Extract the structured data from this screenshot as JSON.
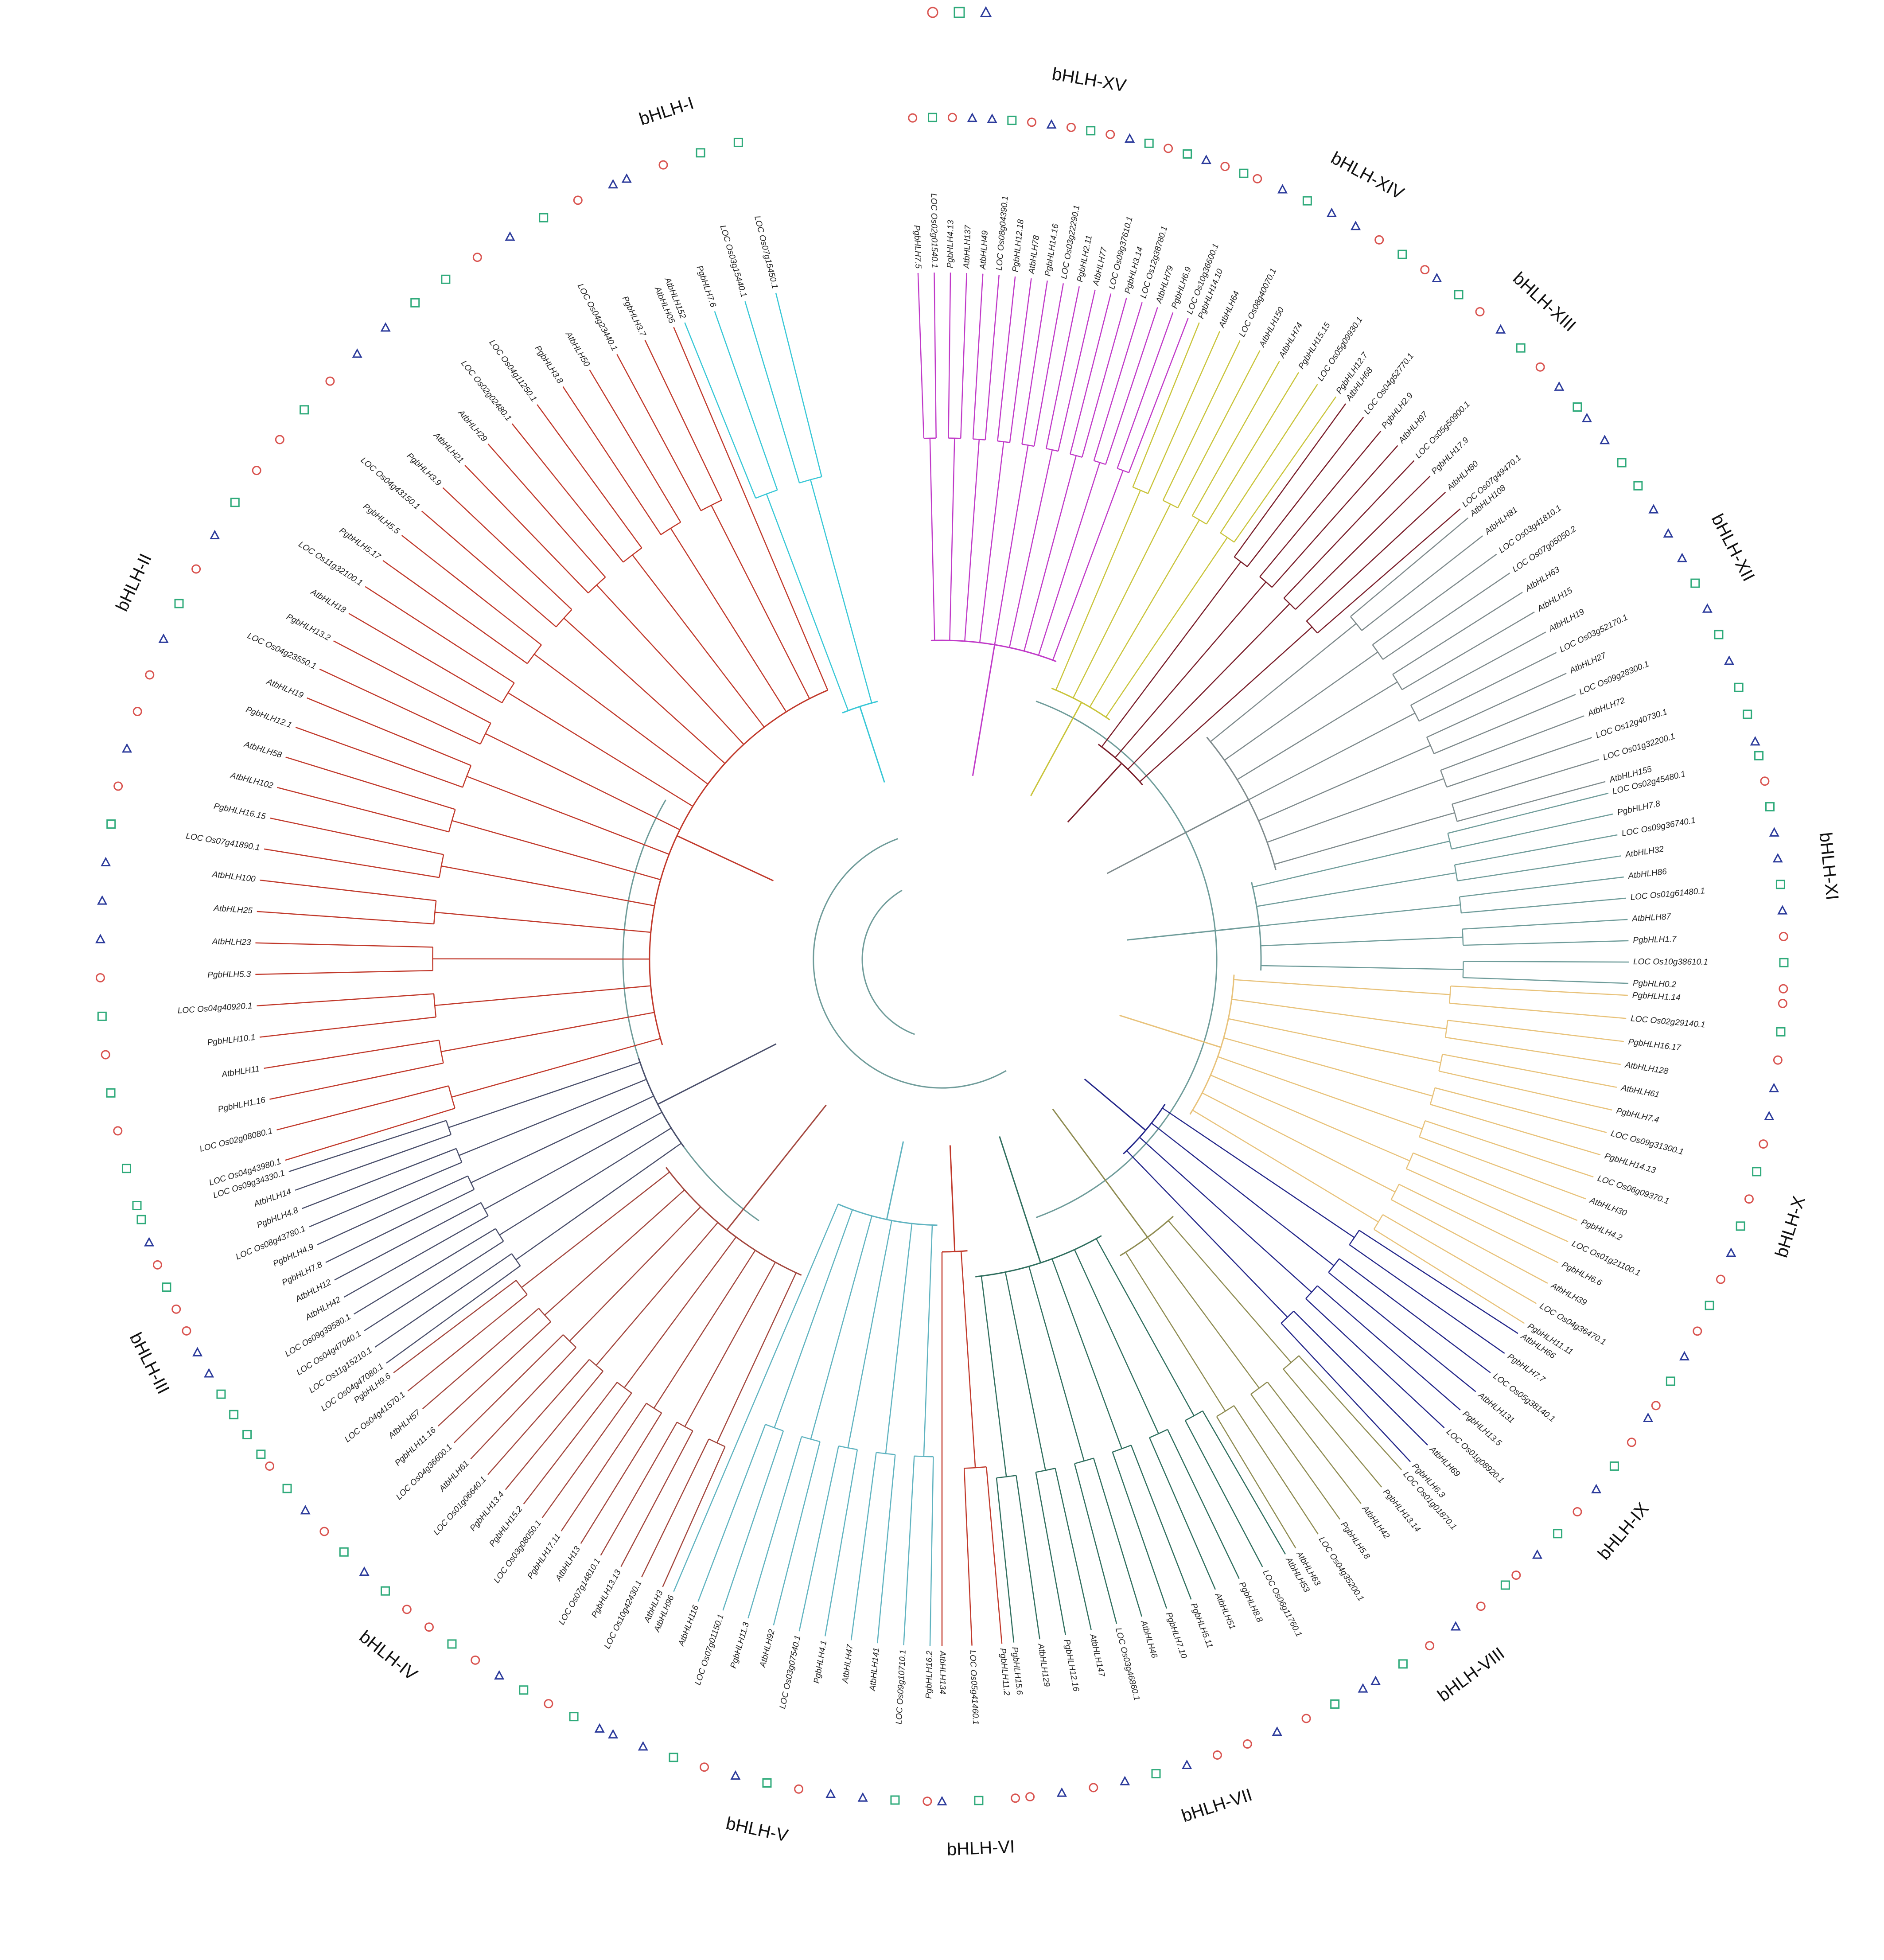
{
  "legend": {
    "items": [
      {
        "shape": "circle",
        "color": "#d9534f"
      },
      {
        "shape": "square",
        "color": "#2eaa7a"
      },
      {
        "shape": "triangle",
        "color": "#2b3a9b"
      }
    ]
  },
  "markers": {
    "circle": "#d9534f",
    "square": "#2eaa7a",
    "triangle": "#2b3a9b"
  },
  "backbone_color": "#6f9c9a",
  "groups": [
    {
      "label": "bHLH-I",
      "color": "#37c7d6",
      "startDeg": 338,
      "endDeg": 346,
      "markerTypes": [
        "triangle",
        "circle",
        "square",
        "square"
      ],
      "leaves": [
        "AtbHLH152",
        "PgbHLH7.6",
        "LOC Os03g15440.1",
        "LOC Os07g15450.1"
      ]
    },
    {
      "label": "bHLH-II",
      "color": "#c1392b",
      "startDeg": 253,
      "endDeg": 337,
      "markerTypes": [
        "square",
        "square",
        "circle",
        "square",
        "circle",
        "square",
        "circle",
        "triangle",
        "triangle",
        "triangle",
        "square",
        "circle",
        "triangle",
        "circle",
        "circle",
        "triangle",
        "square",
        "circle",
        "triangle",
        "square",
        "circle",
        "circle",
        "square",
        "circle",
        "triangle",
        "triangle",
        "square",
        "square",
        "circle",
        "triangle",
        "square",
        "circle",
        "triangle"
      ],
      "leaves": [
        "LOC Os04g43980.1",
        "LOC Os02g08080.1",
        "PgbHLH1.16",
        "AtbHLH11",
        "PgbHLH10.1",
        "LOC Os04g40920.1",
        "PgbHLH5.3",
        "AtbHLH23",
        "AtbHLH25",
        "AtbHLH100",
        "LOC Os07g41890.1",
        "PgbHLH16.15",
        "AtbHLH102",
        "AtbHLH58",
        "PgbHLH12.1",
        "AtbHLH19",
        "LOC Os04g23550.1",
        "PgbHLH13.2",
        "AtbHLH18",
        "LOC Os11g32100.1",
        "PgbHLH5.17",
        "PgbHLH5.5",
        "LOC Os04g43150.1",
        "PgbHLH3.9",
        "AtbHLH21",
        "AtbHLH29",
        "LOC Os02g02480.1",
        "LOC Os04g11250.1",
        "PgbHLH3.8",
        "AtbHLH50",
        "LOC Os04g23440.1",
        "PgbHLH3.7",
        "AtbHLH05"
      ]
    },
    {
      "label": "bHLH-III",
      "color": "#4a4f6b",
      "startDeg": 234,
      "endDeg": 252,
      "markerTypes": [
        "square",
        "square",
        "square",
        "square",
        "triangle",
        "triangle",
        "circle",
        "circle",
        "square",
        "circle",
        "triangle",
        "square"
      ],
      "leaves": [
        "LOC Os04g47080.1",
        "LOC Os11g15210.1",
        "LOC Os04g47040.1",
        "LOC Os09g39580.1",
        "AtbHLH42",
        "AtbHLH12",
        "PgbHLH7.8",
        "PgbHLH4.9",
        "LOC Os08g43780.1",
        "PgbHLH4.8",
        "AtbHLH14",
        "LOC Os09g34330.1"
      ]
    },
    {
      "label": "bHLH-IV",
      "color": "#a3463d",
      "startDeg": 204,
      "endDeg": 233,
      "markerTypes": [
        "triangle",
        "square",
        "circle",
        "square",
        "triangle",
        "circle",
        "square",
        "circle",
        "circle",
        "square",
        "triangle",
        "square",
        "circle",
        "triangle",
        "square",
        "circle"
      ],
      "leaves": [
        "AtbHLH3",
        "LOC Os10g42430.1",
        "PgbHLH13.13",
        "LOC Os07g14810.1",
        "AtbHLH13",
        "PgbHLH17.11",
        "LOC Os03g08050.1",
        "PgbHLH15.2",
        "PgbHLH13.4",
        "LOC Os01g06640.1",
        "AtbHLH61",
        "LOC Os04g36600.1",
        "PgbHLH11.16",
        "AtbHLH57",
        "LOC Os04g41570.1",
        "PgbHLH9.6"
      ]
    },
    {
      "label": "bHLH-V",
      "color": "#5fb3c0",
      "startDeg": 181,
      "endDeg": 203,
      "markerTypes": [
        "circle",
        "square",
        "triangle",
        "triangle",
        "circle",
        "square",
        "triangle",
        "circle",
        "square",
        "triangle",
        "triangle"
      ],
      "leaves": [
        "PgbHLH16.2",
        "LOC Os09g10710.1",
        "AtbHLH141",
        "AtbHLH47",
        "PgbHLH4.1",
        "LOC Os03g07540.1",
        "AtbHLH92",
        "PgbHLH11.3",
        "LOC Os07g01150.1",
        "AtbHLH116",
        "AtbHLH96"
      ]
    },
    {
      "label": "bHLH-VI",
      "color": "#c1392b",
      "startDeg": 175,
      "endDeg": 180,
      "markerTypes": [
        "circle",
        "square",
        "triangle"
      ],
      "leaves": [
        "PgbHLH11.2",
        "LOC Os05g41460.1",
        "AtbHLH134"
      ]
    },
    {
      "label": "bHLH-VII",
      "color": "#2f6e5e",
      "startDeg": 150,
      "endDeg": 174,
      "markerTypes": [
        "triangle",
        "square",
        "circle",
        "triangle",
        "circle",
        "circle",
        "triangle",
        "square",
        "triangle",
        "circle",
        "triangle",
        "circle"
      ],
      "leaves": [
        "AtbHLH53",
        "LOC Os06g11760.1",
        "PgbHLH8.8",
        "AtbHLH51",
        "PgbHLH5.11",
        "PgbHLH7.10",
        "AtbHLH46",
        "LOC Os03g46860.1",
        "AtbHLH147",
        "PgbHLH12.16",
        "AtbHLH129",
        "PgbHLH15.6"
      ]
    },
    {
      "label": "bHLH-VIII",
      "color": "#8f8c52",
      "startDeg": 138,
      "endDeg": 149,
      "markerTypes": [
        "square",
        "circle",
        "triangle",
        "circle",
        "square",
        "triangle"
      ],
      "leaves": [
        "LOC Os01g01870.1",
        "PgbHLH13.14",
        "AtbHLH42",
        "PgbHLH5.8",
        "LOC Os04g35200.1",
        "AtbHLH63"
      ]
    },
    {
      "label": "bHLH-IX",
      "color": "#24278a",
      "startDeg": 123,
      "endDeg": 137,
      "markerTypes": [
        "triangle",
        "circle",
        "square",
        "triangle",
        "circle",
        "square",
        "triangle",
        "circle"
      ],
      "leaves": [
        "AtbHLH66",
        "PgbHLH7.7",
        "LOC Os05g38140.1",
        "AtbHLH131",
        "PgbHLH13.5",
        "LOC Os01g08920.1",
        "AtbHLH69",
        "PgbHLH6.3"
      ]
    },
    {
      "label": "bHLH-X",
      "color": "#e8c27a",
      "startDeg": 93,
      "endDeg": 122,
      "markerTypes": [
        "circle",
        "square",
        "circle",
        "triangle",
        "triangle",
        "circle",
        "square",
        "circle",
        "square",
        "triangle",
        "circle",
        "square",
        "circle",
        "triangle",
        "square",
        "circle"
      ],
      "leaves": [
        "PgbHLH1.14",
        "LOC Os02g29140.1",
        "PgbHLH16.17",
        "AtbHLH128",
        "AtbHLH61",
        "PgbHLH7.4",
        "LOC Os09g31300.1",
        "PgbHLH14.13",
        "LOC Os06g09370.1",
        "AtbHLH30",
        "PgbHLH4.2",
        "LOC Os01g21100.1",
        "PgbHLH6.6",
        "AtbHLH39",
        "LOC Os04g36470.1",
        "PgbHLH11.11"
      ]
    },
    {
      "label": "bHLH-XI",
      "color": "#6f9c9a",
      "startDeg": 76,
      "endDeg": 92,
      "markerTypes": [
        "square",
        "circle",
        "square",
        "triangle",
        "triangle",
        "square",
        "triangle",
        "circle",
        "square",
        "circle"
      ],
      "leaves": [
        "LOC Os02g45480.1",
        "PgbHLH7.8",
        "LOC Os09g36740.1",
        "AtbHLH32",
        "AtbHLH86",
        "LOC Os01g61480.1",
        "AtbHLH87",
        "PgbHLH1.7",
        "LOC Os10g38610.1",
        "PgbHLH0.2"
      ]
    },
    {
      "label": "bHLH-XII",
      "color": "#7e8a8c",
      "startDeg": 50,
      "endDeg": 75,
      "markerTypes": [
        "triangle",
        "triangle",
        "square",
        "square",
        "triangle",
        "triangle",
        "triangle",
        "square",
        "triangle",
        "square",
        "triangle",
        "square",
        "square",
        "triangle"
      ],
      "leaves": [
        "AtbHLH108",
        "AtbHLH81",
        "LOC Os03g41810.1",
        "LOC Os07g05050.2",
        "AtbHLH63",
        "AtbHLH15",
        "AtbHLH19",
        "LOC Os03g52170.1",
        "AtbHLH27",
        "LOC Os09g28300.1",
        "AtbHLH72",
        "LOC Os12g40730.1",
        "LOC Os01g32200.1",
        "AtbHLH155"
      ]
    },
    {
      "label": "bHLH-XIII",
      "color": "#7a1e2a",
      "startDeg": 36,
      "endDeg": 49,
      "markerTypes": [
        "triangle",
        "square",
        "circle",
        "triangle",
        "square",
        "circle",
        "triangle",
        "square"
      ],
      "leaves": [
        "AtbHLH68",
        "LOC Os04g52770.1",
        "PgbHLH2.9",
        "AtbHLH97",
        "LOC Os05g50900.1",
        "PgbHLH17.9",
        "AtbHLH80",
        "LOC Os07g49470.1"
      ]
    },
    {
      "label": "bHLH-XIV",
      "color": "#c9c43a",
      "startDeg": 22,
      "endDeg": 35,
      "markerTypes": [
        "circle",
        "triangle",
        "square",
        "triangle",
        "triangle",
        "circle",
        "square",
        "circle"
      ],
      "leaves": [
        "PgbHLH14.10",
        "AtbHLH64",
        "LOC Os08g40070.1",
        "AtbHLH150",
        "AtbHLH74",
        "PgbHLH15.15",
        "LOC Os05g09930.1",
        "PgbHLH12.7"
      ]
    },
    {
      "label": "bHLH-XV",
      "color": "#c03ac8",
      "startDeg": 358,
      "endDeg": 21,
      "markerTypes": [
        "circle",
        "square",
        "circle",
        "triangle",
        "triangle",
        "square",
        "circle",
        "triangle",
        "circle",
        "square",
        "circle",
        "triangle",
        "square",
        "circle",
        "square",
        "triangle",
        "circle",
        "square"
      ],
      "leaves": [
        "PgbHLH7.5",
        "LOC Os02g01540.1",
        "PgbHLH4.13",
        "AtbHLH137",
        "AtbHLH49",
        "LOC Os08g04390.1",
        "PgbHLH12.18",
        "AtbHLH78",
        "PgbHLH14.16",
        "LOC Os03g22290.1",
        "PgbHLH2.11",
        "AtbHLH77",
        "LOC Os09g37610.1",
        "PgbHLH3.14",
        "LOC Os12g38780.1",
        "AtbHLH79",
        "PgbHLH6.9",
        "LOC Os10g36600.1"
      ]
    }
  ]
}
